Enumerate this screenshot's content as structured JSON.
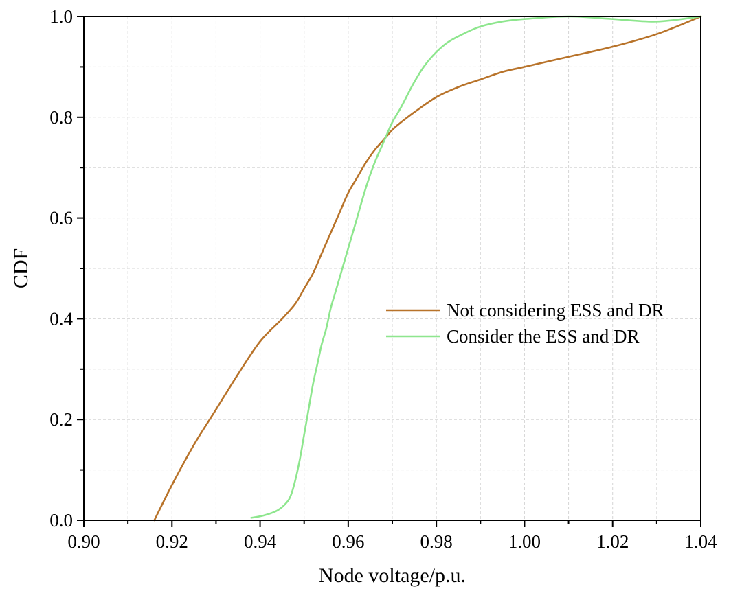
{
  "chart_data": {
    "type": "line",
    "title": "",
    "xlabel": "Node voltage/p.u.",
    "ylabel": "CDF",
    "xlim": [
      0.9,
      1.04
    ],
    "ylim": [
      0.0,
      1.0
    ],
    "x_ticks": [
      0.9,
      0.92,
      0.94,
      0.96,
      0.98,
      1.0,
      1.02,
      1.04
    ],
    "x_tick_labels": [
      "0.90",
      "0.92",
      "0.94",
      "0.96",
      "0.98",
      "1.00",
      "1.02",
      "1.04"
    ],
    "x_minor_ticks": [
      0.91,
      0.93,
      0.95,
      0.97,
      0.99,
      1.01,
      1.03
    ],
    "y_ticks": [
      0.0,
      0.2,
      0.4,
      0.6,
      0.8,
      1.0
    ],
    "y_tick_labels": [
      "0.0",
      "0.2",
      "0.4",
      "0.6",
      "0.8",
      "1.0"
    ],
    "y_minor_ticks": [
      0.1,
      0.3,
      0.5,
      0.7,
      0.9
    ],
    "grid": true,
    "legend_position": "center-right",
    "series": [
      {
        "name": "Not considering ESS and DR",
        "color": "#b8732a",
        "x": [
          0.916,
          0.92,
          0.925,
          0.93,
          0.935,
          0.94,
          0.945,
          0.948,
          0.95,
          0.952,
          0.954,
          0.956,
          0.958,
          0.96,
          0.962,
          0.964,
          0.966,
          0.968,
          0.97,
          0.972,
          0.975,
          0.98,
          0.985,
          0.99,
          0.995,
          1.0,
          1.01,
          1.02,
          1.03,
          1.04
        ],
        "y": [
          0.0,
          0.07,
          0.15,
          0.22,
          0.29,
          0.355,
          0.4,
          0.43,
          0.46,
          0.49,
          0.53,
          0.57,
          0.61,
          0.65,
          0.68,
          0.71,
          0.735,
          0.755,
          0.775,
          0.79,
          0.81,
          0.84,
          0.86,
          0.875,
          0.89,
          0.9,
          0.92,
          0.94,
          0.965,
          1.0
        ]
      },
      {
        "name": "Consider the ESS and DR",
        "color": "#8ee68e",
        "x": [
          0.938,
          0.941,
          0.944,
          0.946,
          0.947,
          0.948,
          0.949,
          0.95,
          0.951,
          0.952,
          0.953,
          0.954,
          0.955,
          0.956,
          0.957,
          0.958,
          0.96,
          0.962,
          0.964,
          0.966,
          0.968,
          0.97,
          0.972,
          0.975,
          0.978,
          0.982,
          0.986,
          0.99,
          0.995,
          1.0,
          1.01,
          1.02,
          1.03,
          1.04
        ],
        "y": [
          0.005,
          0.01,
          0.02,
          0.035,
          0.05,
          0.08,
          0.12,
          0.17,
          0.22,
          0.27,
          0.31,
          0.35,
          0.38,
          0.42,
          0.45,
          0.48,
          0.54,
          0.6,
          0.66,
          0.71,
          0.75,
          0.79,
          0.82,
          0.87,
          0.91,
          0.945,
          0.965,
          0.98,
          0.99,
          0.995,
          1.0,
          0.995,
          0.99,
          1.0
        ]
      }
    ]
  }
}
